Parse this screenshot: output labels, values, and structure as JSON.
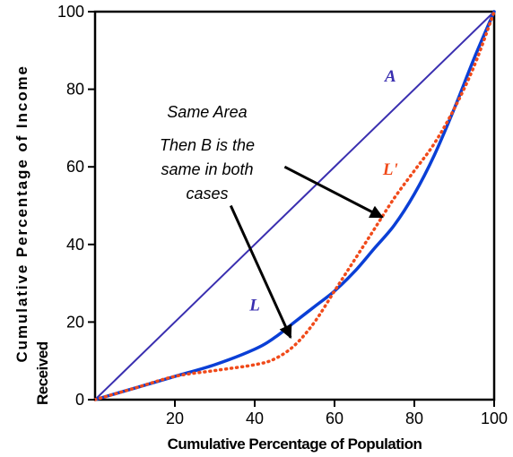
{
  "chart_data": {
    "type": "line",
    "xlabel": "Cumulative Percentage of Population",
    "ylabel_lines": [
      "Cumulative Percentage of Income",
      "Received"
    ],
    "xlim": [
      0,
      100
    ],
    "ylim": [
      0,
      100
    ],
    "x_ticks": [
      "20",
      "40",
      "60",
      "80",
      "100"
    ],
    "y_ticks": [
      "0",
      "20",
      "40",
      "60",
      "80",
      "100"
    ],
    "grid": false,
    "series": [
      {
        "name": "A",
        "color": "#3a2fb0",
        "style": "solid",
        "points": [
          [
            0,
            0
          ],
          [
            100,
            100
          ]
        ]
      },
      {
        "name": "L",
        "color": "#0a3fd6",
        "style": "solid",
        "points": [
          [
            0,
            0
          ],
          [
            10,
            3
          ],
          [
            20,
            6
          ],
          [
            30,
            9
          ],
          [
            40,
            13
          ],
          [
            45,
            16
          ],
          [
            50,
            20
          ],
          [
            55,
            24
          ],
          [
            60,
            28
          ],
          [
            65,
            33
          ],
          [
            70,
            39
          ],
          [
            75,
            45
          ],
          [
            80,
            53
          ],
          [
            85,
            63
          ],
          [
            90,
            75
          ],
          [
            95,
            88
          ],
          [
            100,
            100
          ]
        ]
      },
      {
        "name": "L'",
        "color": "#f04a1a",
        "style": "dotted",
        "points": [
          [
            0,
            0
          ],
          [
            10,
            3
          ],
          [
            20,
            6
          ],
          [
            30,
            7.5
          ],
          [
            40,
            9
          ],
          [
            45,
            10.5
          ],
          [
            50,
            14
          ],
          [
            55,
            20
          ],
          [
            60,
            28
          ],
          [
            65,
            36
          ],
          [
            70,
            44
          ],
          [
            75,
            52
          ],
          [
            80,
            59
          ],
          [
            85,
            66
          ],
          [
            90,
            75
          ],
          [
            95,
            86
          ],
          [
            100,
            100
          ]
        ]
      }
    ],
    "annotations": {
      "same_area": "Same Area",
      "then_b_lines": [
        "Then B is the",
        "same in both",
        "cases"
      ]
    },
    "arrows": [
      {
        "from": [
          47.5,
          60
        ],
        "to": [
          72,
          47
        ]
      },
      {
        "from": [
          34,
          50
        ],
        "to": [
          49,
          16
        ]
      }
    ],
    "curve_labels": [
      {
        "text": "A",
        "x": 74,
        "y": 82,
        "color": "#3a2fb0"
      },
      {
        "text": "L'",
        "x": 74,
        "y": 58,
        "color": "#f04a1a"
      },
      {
        "text": "L",
        "x": 40,
        "y": 23,
        "color": "#3a2fb0"
      }
    ]
  }
}
